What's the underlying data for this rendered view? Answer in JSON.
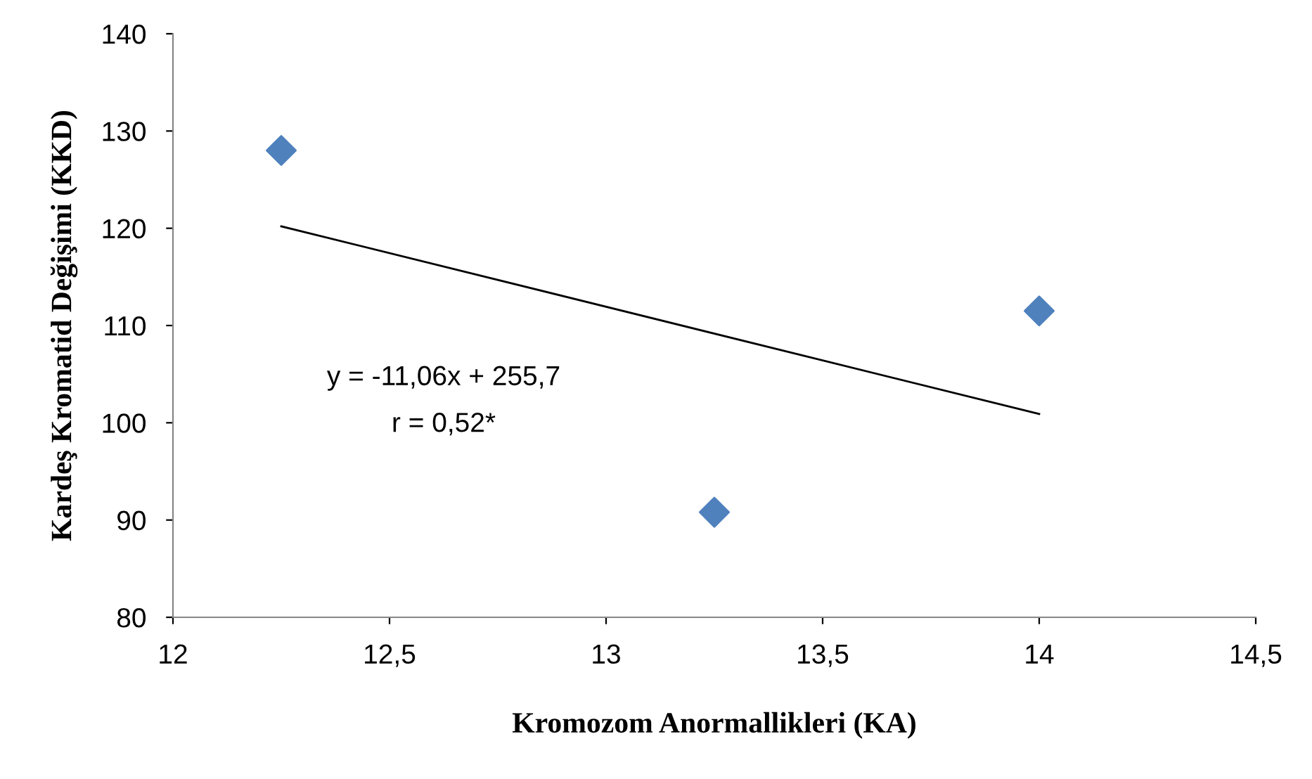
{
  "chart_data": {
    "type": "scatter",
    "xlabel": "Kromozom Anormallikleri (KA)",
    "ylabel": "Kardeş Kromatid Değişimi (KKD)",
    "x": [
      12.25,
      13.25,
      14
    ],
    "series": [
      {
        "color": "#4f81bd",
        "marker": "diamond",
        "values": [
          128,
          90.8,
          111.5
        ]
      },
      {
        "type": "line",
        "color": "#000000",
        "marker": "none",
        "line_style": "solid",
        "x": [
          12.25,
          14
        ],
        "values": [
          120.2,
          100.9
        ]
      }
    ],
    "xlim": [
      12,
      14.5
    ],
    "ylim": [
      80,
      140
    ],
    "xticks": [
      12,
      {
        "value": 12.5,
        "label": "12,5"
      },
      13,
      {
        "value": 13.5,
        "label": "13,5"
      },
      14,
      {
        "value": 14.5,
        "label": "14,5"
      }
    ],
    "yticks": [
      80,
      90,
      100,
      110,
      120,
      130,
      140
    ],
    "annotations": [
      "y = -11,06x + 255,7",
      "r = 0,52*"
    ],
    "grid": false,
    "legend": false
  }
}
